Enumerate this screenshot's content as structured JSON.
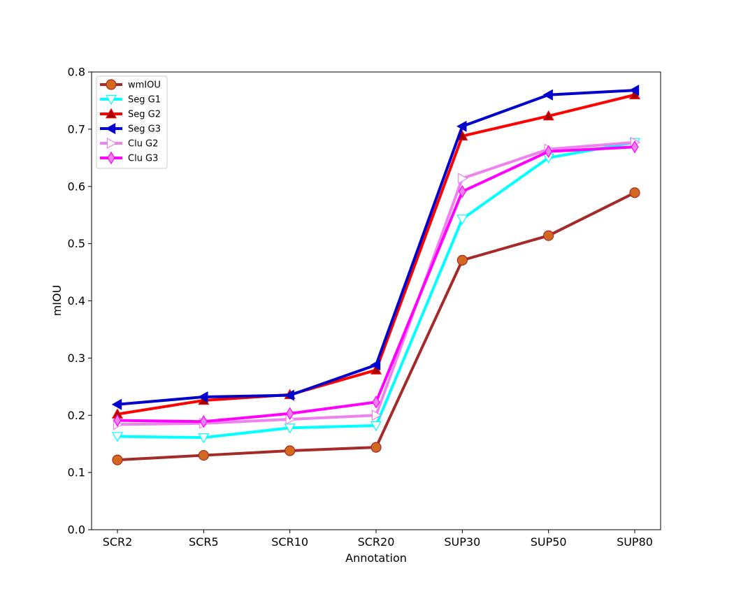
{
  "chart_data": {
    "type": "line",
    "title": "",
    "xlabel": "Annotation",
    "ylabel": "mIOU",
    "categories": [
      "SCR2",
      "SCR5",
      "SCR10",
      "SCR20",
      "SUP30",
      "SUP50",
      "SUP80"
    ],
    "ylim": [
      0.0,
      0.8
    ],
    "yticks": [
      "0.0",
      "0.1",
      "0.2",
      "0.3",
      "0.4",
      "0.5",
      "0.6",
      "0.7",
      "0.8"
    ],
    "grid": false,
    "legend_position": "top-left",
    "series": [
      {
        "name": "wmIOU",
        "color": "#a52a2a",
        "marker": "circle",
        "marker_fill": "#d2691e",
        "marker_edge": "#a52a2a",
        "values": [
          0.122,
          0.13,
          0.138,
          0.144,
          0.471,
          0.514,
          0.589
        ]
      },
      {
        "name": "Seg G1",
        "color": "#00ffff",
        "marker": "triangle-down",
        "marker_fill": "#ffffff",
        "marker_edge": "#00ffff",
        "values": [
          0.163,
          0.161,
          0.178,
          0.182,
          0.543,
          0.65,
          0.677
        ]
      },
      {
        "name": "Seg G2",
        "color": "#ff0000",
        "marker": "triangle-up",
        "marker_fill": "#a50000",
        "marker_edge": "#ff0000",
        "values": [
          0.202,
          0.226,
          0.236,
          0.279,
          0.688,
          0.723,
          0.76
        ]
      },
      {
        "name": "Seg G3",
        "color": "#0000cd",
        "marker": "triangle-left",
        "marker_fill": "#0000cd",
        "marker_edge": "#0000cd",
        "values": [
          0.219,
          0.232,
          0.235,
          0.288,
          0.705,
          0.76,
          0.768
        ]
      },
      {
        "name": "Clu G2",
        "color": "#ee82ee",
        "marker": "triangle-right",
        "marker_fill": "#ffffff",
        "marker_edge": "#ee82ee",
        "values": [
          0.184,
          0.186,
          0.193,
          0.2,
          0.614,
          0.665,
          0.677
        ]
      },
      {
        "name": "Clu G3",
        "color": "#ff00ff",
        "marker": "diamond",
        "marker_fill": "#ee82ee",
        "marker_edge": "#ff00ff",
        "values": [
          0.191,
          0.189,
          0.203,
          0.223,
          0.591,
          0.661,
          0.669
        ]
      }
    ]
  }
}
